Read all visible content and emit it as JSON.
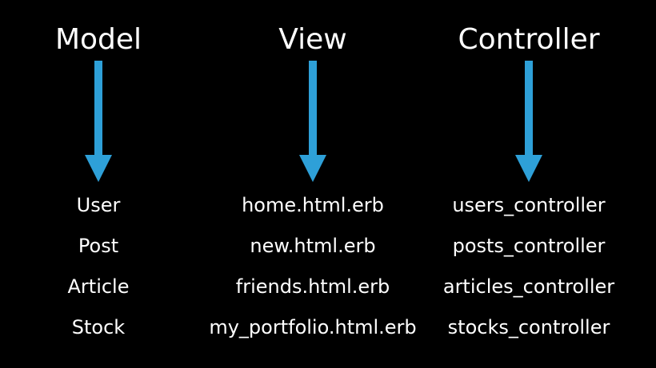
{
  "colors": {
    "background": "#000000",
    "text": "#ffffff",
    "arrow": "#2ea0d8"
  },
  "columns": [
    {
      "heading": "Model",
      "items": [
        "User",
        "Post",
        "Article",
        "Stock"
      ]
    },
    {
      "heading": "View",
      "items": [
        "home.html.erb",
        "new.html.erb",
        "friends.html.erb",
        "my_portfolio.html.erb"
      ]
    },
    {
      "heading": "Controller",
      "items": [
        "users_controller",
        "posts_controller",
        "articles_controller",
        "stocks_controller"
      ]
    }
  ]
}
